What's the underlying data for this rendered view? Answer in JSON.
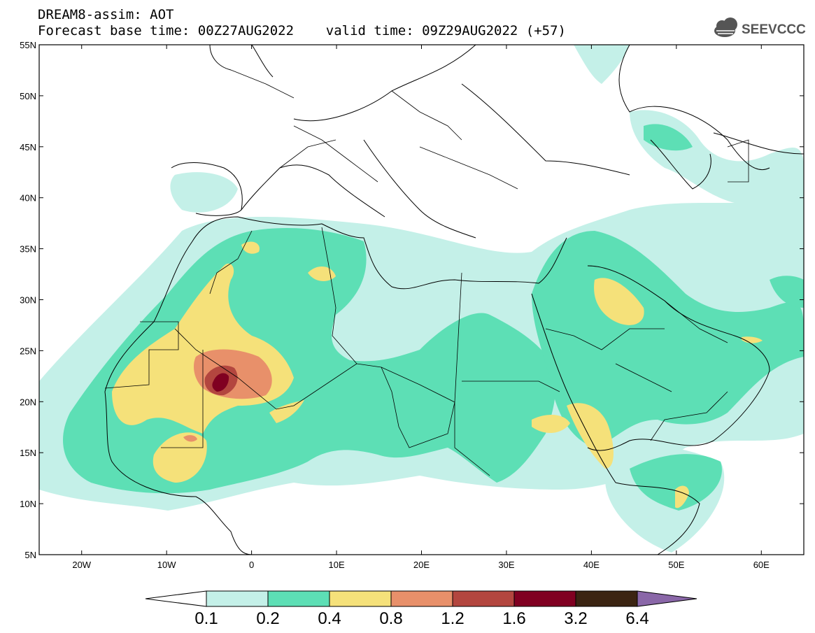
{
  "header": {
    "line1": "DREAM8-assim: AOT",
    "line2": "Forecast base time: 00Z27AUG2022    valid time: 09Z29AUG2022 (+57)"
  },
  "logo": {
    "text": "SEEVCCC",
    "icon": "cloud-icon"
  },
  "map": {
    "lon_range": [
      -25,
      65
    ],
    "lat_range": [
      5,
      55
    ],
    "lon_ticks": [
      "20W",
      "10W",
      "0",
      "10E",
      "20E",
      "30E",
      "40E",
      "50E",
      "60E"
    ],
    "lat_ticks": [
      "55N",
      "50N",
      "45N",
      "40N",
      "35N",
      "30N",
      "25N",
      "20N",
      "15N",
      "10N",
      "5N"
    ]
  },
  "legend": {
    "labels": [
      "0.1",
      "0.2",
      "0.4",
      "0.8",
      "1.2",
      "1.6",
      "3.2",
      "6.4"
    ],
    "colors": [
      "#ffffff",
      "#c4f0e8",
      "#5ddfb5",
      "#f5e17a",
      "#e8906a",
      "#b3463f",
      "#800021",
      "#3b2412",
      "#8a67a8"
    ]
  }
}
